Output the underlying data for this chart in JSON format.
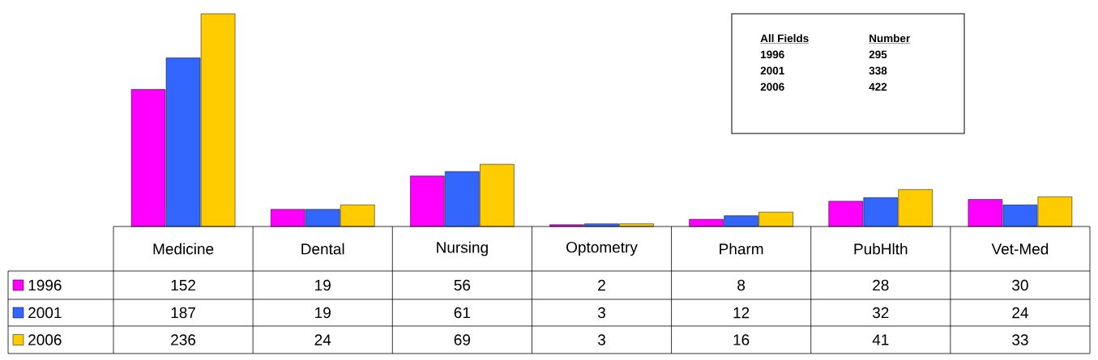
{
  "chart_data": {
    "type": "bar",
    "categories": [
      "Medicine",
      "Dental",
      "Nursing",
      "Optometry",
      "Pharm",
      "PubHlth",
      "Vet-Med"
    ],
    "series": [
      {
        "name": "1996",
        "color": "#ff00ff",
        "values": [
          152,
          19,
          56,
          2,
          8,
          28,
          30
        ]
      },
      {
        "name": "2001",
        "color": "#3366ff",
        "values": [
          187,
          19,
          61,
          3,
          12,
          32,
          24
        ]
      },
      {
        "name": "2006",
        "color": "#ffcc00",
        "values": [
          236,
          24,
          69,
          3,
          16,
          41,
          33
        ]
      }
    ],
    "data_labels": true,
    "legend": "bottom left",
    "annotations": [
      "All Fields",
      "Number",
      "1996",
      "295",
      "2001",
      "338",
      "2006",
      "422"
    ]
  }
}
